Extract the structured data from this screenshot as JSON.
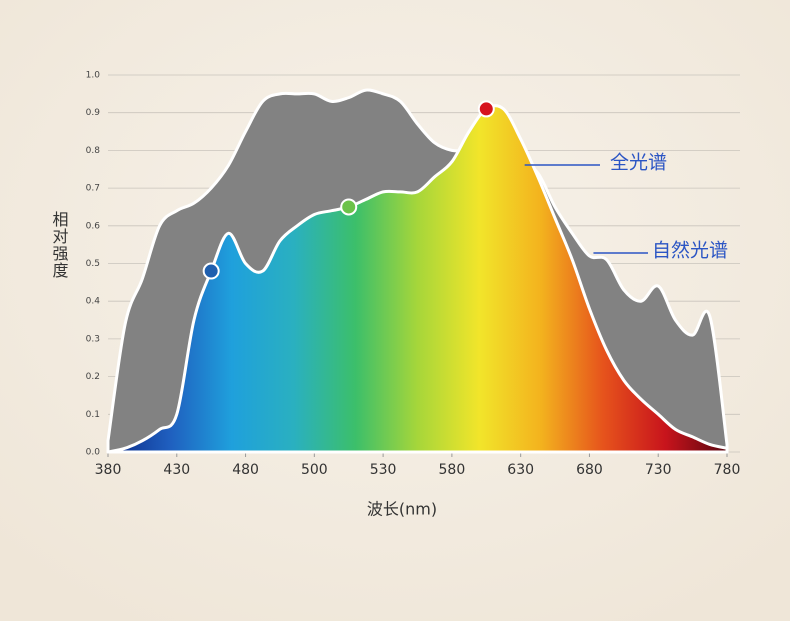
{
  "chart_data": {
    "type": "area",
    "x_label": "波长(nm)",
    "y_label": "相对强度",
    "x": [
      380,
      392.5,
      405,
      417.5,
      430,
      442.5,
      455,
      467.5,
      480,
      485,
      490,
      495,
      500,
      507.5,
      515,
      522.5,
      530,
      542.5,
      555,
      567.5,
      580,
      592.5,
      605,
      617.5,
      630,
      642.5,
      655,
      667.5,
      680,
      692.5,
      705,
      717.5,
      730,
      742.5,
      755,
      767.5,
      780
    ],
    "series": [
      {
        "name": "自然光谱",
        "color": "#828282",
        "values": [
          0.03,
          0.34,
          0.46,
          0.6,
          0.64,
          0.66,
          0.7,
          0.76,
          0.85,
          0.93,
          0.95,
          0.95,
          0.95,
          0.93,
          0.94,
          0.96,
          0.95,
          0.93,
          0.87,
          0.82,
          0.8,
          0.8,
          0.8,
          0.79,
          0.77,
          0.74,
          0.65,
          0.58,
          0.52,
          0.51,
          0.43,
          0.4,
          0.44,
          0.35,
          0.31,
          0.36,
          0.02
        ]
      },
      {
        "name": "全光谱",
        "color": [
          "#0c2a86",
          "#1f5fbf",
          "#1fa0dc",
          "#2ab0c0",
          "#3cbf6a",
          "#a6d63a",
          "#f2e52a",
          "#f3b21e",
          "#e6531c",
          "#c8141c",
          "#5a0610"
        ],
        "values": [
          0.0,
          0.01,
          0.03,
          0.06,
          0.1,
          0.35,
          0.48,
          0.58,
          0.5,
          0.48,
          0.56,
          0.6,
          0.63,
          0.64,
          0.65,
          0.67,
          0.69,
          0.69,
          0.69,
          0.73,
          0.77,
          0.85,
          0.91,
          0.91,
          0.83,
          0.73,
          0.62,
          0.51,
          0.38,
          0.27,
          0.19,
          0.14,
          0.1,
          0.06,
          0.04,
          0.02,
          0.01
        ]
      }
    ],
    "markers": [
      {
        "index": 6,
        "color": "#1f5fae"
      },
      {
        "index": 14,
        "color": "#6cc24a"
      },
      {
        "index": 22,
        "color": "#d6141e"
      }
    ],
    "label_color": "#2b55c4",
    "xlim": [
      380,
      780
    ],
    "xticks": [
      380,
      430,
      480,
      500,
      530,
      580,
      630,
      680,
      730,
      780
    ],
    "ylim": [
      0,
      1
    ],
    "yticks": [
      {
        "value": 0,
        "label": "0.0"
      },
      0.1,
      0.2,
      0.3,
      0.4,
      0.5,
      0.6,
      0.7,
      0.8,
      0.9,
      {
        "value": 1,
        "label": "1.0"
      }
    ],
    "grid": true
  }
}
